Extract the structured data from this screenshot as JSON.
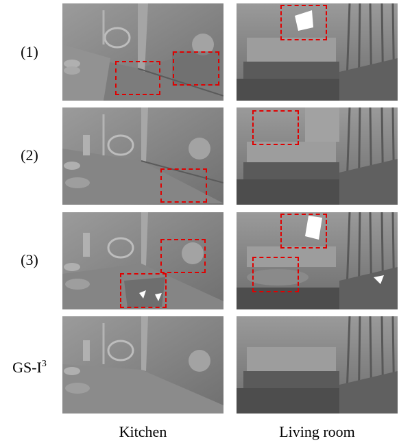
{
  "rows": [
    {
      "label": "(1)"
    },
    {
      "label": "(2)"
    },
    {
      "label": "(3)"
    },
    {
      "label": "GS-I",
      "sup": "3"
    }
  ],
  "columns": [
    {
      "label": "Kitchen"
    },
    {
      "label": "Living room"
    }
  ],
  "colors": {
    "highlight": "#e00000",
    "mesh_base": "#8a8a8a"
  }
}
